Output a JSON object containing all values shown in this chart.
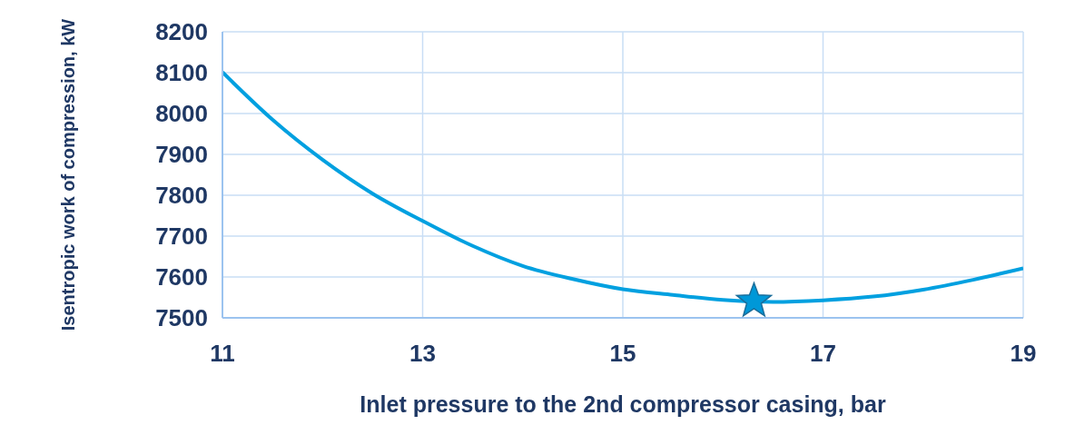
{
  "chart_data": {
    "type": "line",
    "xlabel": "Inlet pressure to the 2nd compressor casing, bar",
    "ylabel": "Isentropic work of compression, kW",
    "xlim": [
      11,
      19
    ],
    "xticks": [
      11,
      13,
      15,
      17,
      19
    ],
    "ylim": [
      7500,
      8200
    ],
    "yticks": [
      7500,
      7600,
      7700,
      7800,
      7900,
      8000,
      8100,
      8200
    ],
    "grid": true,
    "series": [
      {
        "color": "#00a0e0",
        "marker": "none",
        "x": [
          11,
          11.5,
          12,
          12.5,
          13,
          13.5,
          14,
          14.5,
          15,
          15.5,
          16,
          16.5,
          17,
          17.5,
          18,
          18.5,
          19
        ],
        "values": [
          8101,
          7985,
          7887,
          7804,
          7737,
          7676,
          7627,
          7595,
          7570,
          7556,
          7544,
          7539,
          7543,
          7552,
          7569,
          7593,
          7621
        ]
      },
      {
        "type": "scatter",
        "color": "#0098d8",
        "marker": "star",
        "x": [
          16.31
        ],
        "values": [
          7541
        ]
      }
    ]
  }
}
